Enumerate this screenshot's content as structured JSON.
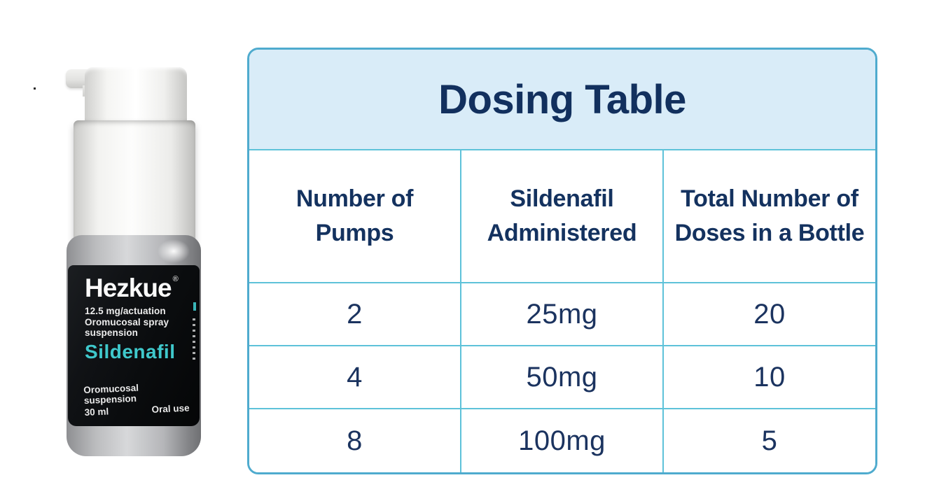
{
  "product": {
    "brand": "Hezkue",
    "registered_mark": "®",
    "strength_line1": "12.5 mg/actuation",
    "strength_line2": "Oromucosal spray",
    "strength_line3": "suspension",
    "active_ingredient": "Sildenafil",
    "bottom_line": "Oromucosal suspension",
    "volume": "30 ml",
    "route": "Oral use",
    "accent_color": "#3fc8cb",
    "label_background": "#0b0d0f"
  },
  "chart_data": {
    "type": "table",
    "title": "Dosing Table",
    "columns": [
      "Number of Pumps",
      "Sildenafil Administered",
      "Total Number of Doses in a Bottle"
    ],
    "rows": [
      [
        "2",
        "25mg",
        "20"
      ],
      [
        "4",
        "50mg",
        "10"
      ],
      [
        "8",
        "100mg",
        "5"
      ]
    ],
    "notes": "Dosing table for Hezkue 12.5 mg/actuation oromucosal spray suspension (Sildenafil), 30 ml bottle",
    "colors": {
      "border_outer": "#4fabce",
      "grid_lines": "#5ec2d9",
      "title_background": "#d9ecf8",
      "text_navy": "#14325f",
      "cell_background": "#ffffff"
    }
  }
}
